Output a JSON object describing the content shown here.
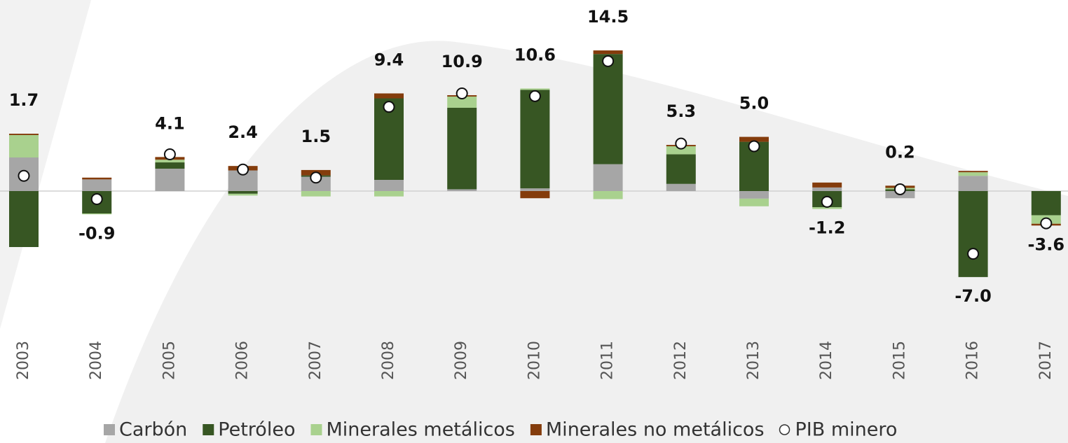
{
  "chart_data": {
    "type": "bar",
    "stacked": true,
    "categories": [
      "2003",
      "2004",
      "2005",
      "2006",
      "2007",
      "2008",
      "2009",
      "2010",
      "2011",
      "2012",
      "2013",
      "2014",
      "2015",
      "2016",
      "2017"
    ],
    "ylim": [
      -12,
      20
    ],
    "series": [
      {
        "name": "Carbón",
        "color": "#a6a6a6",
        "values": [
          3.75,
          1.3,
          2.5,
          2.3,
          1.6,
          1.25,
          0.2,
          0.3,
          3.0,
          0.8,
          -0.85,
          0.4,
          -0.8,
          1.7,
          0
        ]
      },
      {
        "name": "Petróleo",
        "color": "#375623",
        "values": [
          -6.25,
          -2.5,
          0.7,
          -0.3,
          0.15,
          9.1,
          9.1,
          11.0,
          12.3,
          3.3,
          5.5,
          -1.8,
          0.2,
          -9.6,
          -2.7
        ]
      },
      {
        "name": "Minerales metálicos",
        "color": "#a9d18e",
        "values": [
          2.5,
          -0.1,
          0.3,
          -0.2,
          -0.6,
          -0.6,
          1.25,
          0.15,
          -0.9,
          0.9,
          -0.85,
          -0.2,
          0.15,
          0.4,
          -0.95
        ]
      },
      {
        "name": "Minerales no metálicos",
        "color": "#843c0c",
        "values": [
          0.15,
          0.2,
          0.3,
          0.5,
          0.6,
          0.55,
          0.15,
          -0.8,
          0.4,
          0.15,
          0.55,
          0.55,
          0.25,
          0.15,
          -0.2
        ]
      }
    ],
    "points": {
      "name": "PIB minero",
      "color": "#ffffff",
      "values": [
        1.7,
        -0.9,
        4.1,
        2.4,
        1.5,
        9.4,
        10.9,
        10.6,
        14.5,
        5.3,
        5.0,
        -1.2,
        0.2,
        -7.0,
        -3.6
      ],
      "value_labels": [
        "1.7",
        "-0.9",
        "4.1",
        "2.4",
        "1.5",
        "9.4",
        "10.9",
        "10.6",
        "14.5",
        "5.3",
        "5.0",
        "-1.2",
        "0.2",
        "-7.0",
        "-3.6"
      ]
    }
  }
}
